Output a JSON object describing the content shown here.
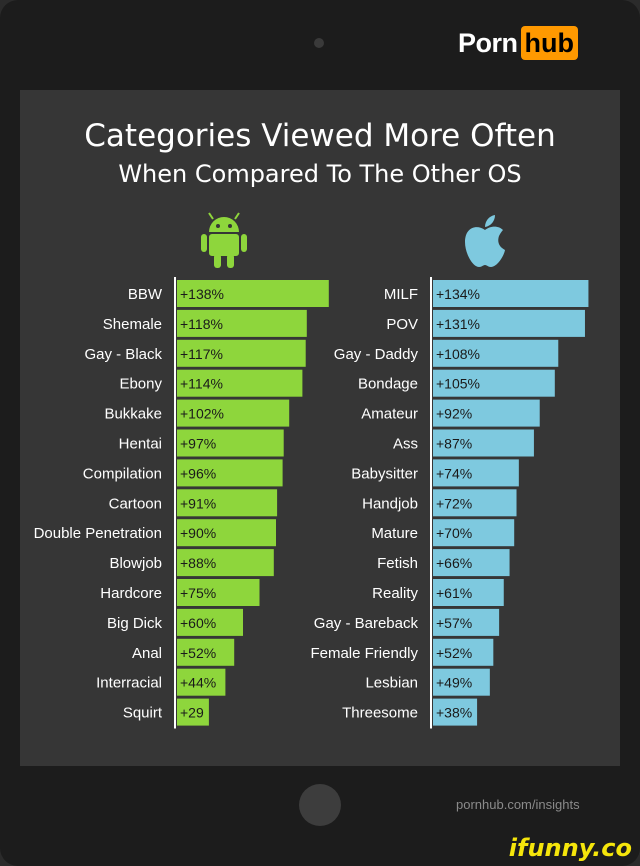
{
  "brand": {
    "part1": "Porn",
    "part2": "hub"
  },
  "source_url": "pornhub.com/insights",
  "watermark": "ifunny.co",
  "icons": {
    "left": "android-icon",
    "right": "apple-icon",
    "home": "home-button"
  },
  "colors": {
    "android": "#8ed63c",
    "apple": "#7ec9df",
    "background": "#363636"
  },
  "chart_data": [
    {
      "type": "bar",
      "orientation": "horizontal",
      "title": "Categories Viewed More Often",
      "subtitle": "When Compared To The Other OS",
      "series_icon": "android-icon",
      "color": "#8ed63c",
      "categories": [
        "BBW",
        "Shemale",
        "Gay - Black",
        "Ebony",
        "Bukkake",
        "Hentai",
        "Compilation",
        "Cartoon",
        "Double Penetration",
        "Blowjob",
        "Hardcore",
        "Big Dick",
        "Anal",
        "Interracial",
        "Squirt"
      ],
      "values": [
        138,
        118,
        117,
        114,
        102,
        97,
        96,
        91,
        90,
        88,
        75,
        60,
        52,
        44,
        29
      ],
      "labels": [
        "+138%",
        "+118%",
        "+117%",
        "+114%",
        "+102%",
        "+97%",
        "+96%",
        "+91%",
        "+90%",
        "+88%",
        "+75%",
        "+60%",
        "+52%",
        "+44%",
        "+29"
      ]
    },
    {
      "type": "bar",
      "orientation": "horizontal",
      "series_icon": "apple-icon",
      "color": "#7ec9df",
      "categories": [
        "MILF",
        "POV",
        "Gay - Daddy",
        "Bondage",
        "Amateur",
        "Ass",
        "Babysitter",
        "Handjob",
        "Mature",
        "Fetish",
        "Reality",
        "Gay - Bareback",
        "Female Friendly",
        "Lesbian",
        "Threesome"
      ],
      "values": [
        134,
        131,
        108,
        105,
        92,
        87,
        74,
        72,
        70,
        66,
        61,
        57,
        52,
        49,
        38
      ],
      "labels": [
        "+134%",
        "+131%",
        "+108%",
        "+105%",
        "+92%",
        "+87%",
        "+74%",
        "+72%",
        "+70%",
        "+66%",
        "+61%",
        "+57%",
        "+52%",
        "+49%",
        "+38%"
      ]
    }
  ]
}
